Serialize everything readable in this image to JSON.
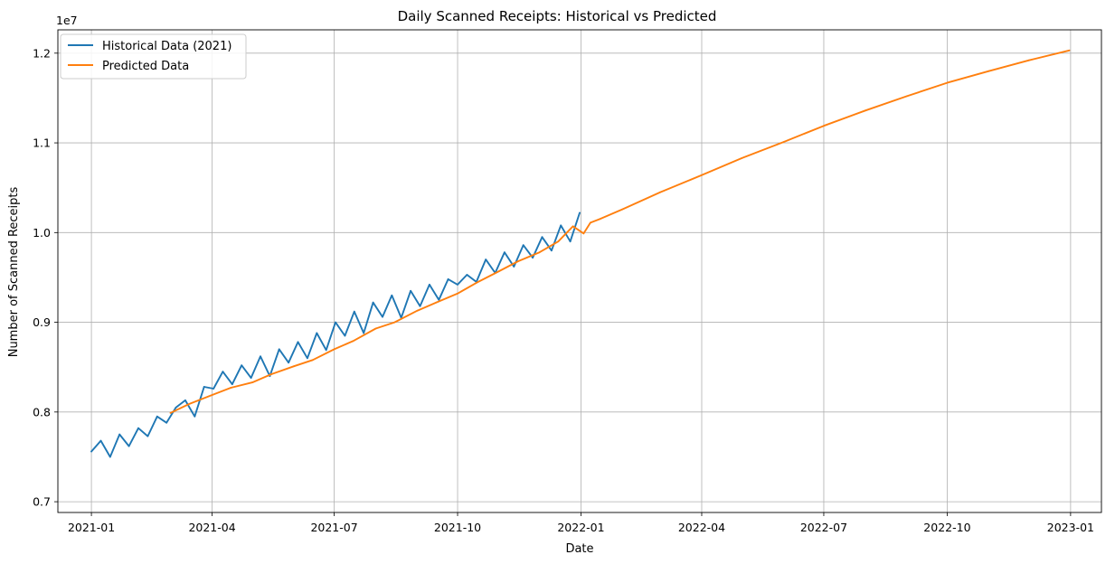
{
  "chart_data": {
    "type": "line",
    "title": "Daily Scanned Receipts: Historical vs Predicted",
    "xlabel": "Date",
    "ylabel": "Number of Scanned Receipts",
    "y_offset_label": "1e7",
    "xlim": [
      "2020-12-07",
      "2023-01-24"
    ],
    "ylim": [
      6880000,
      12260000
    ],
    "x_ticks": [
      "2021-01",
      "2021-04",
      "2021-07",
      "2021-10",
      "2022-01",
      "2022-04",
      "2022-07",
      "2022-10",
      "2023-01"
    ],
    "y_ticks": [
      {
        "value": 7000000,
        "label": "0.7"
      },
      {
        "value": 8000000,
        "label": "0.8"
      },
      {
        "value": 9000000,
        "label": "0.9"
      },
      {
        "value": 10000000,
        "label": "1.0"
      },
      {
        "value": 11000000,
        "label": "1.1"
      },
      {
        "value": 12000000,
        "label": "1.2"
      }
    ],
    "grid": true,
    "legend_position": "top-left",
    "series": [
      {
        "name": "Historical Data (2021)",
        "color": "#1f77b4",
        "x": [
          "2021-01-01",
          "2021-01-08",
          "2021-01-15",
          "2021-01-22",
          "2021-01-29",
          "2021-02-05",
          "2021-02-12",
          "2021-02-19",
          "2021-02-26",
          "2021-03-05",
          "2021-03-12",
          "2021-03-19",
          "2021-03-26",
          "2021-04-02",
          "2021-04-09",
          "2021-04-16",
          "2021-04-23",
          "2021-04-30",
          "2021-05-07",
          "2021-05-14",
          "2021-05-21",
          "2021-05-28",
          "2021-06-04",
          "2021-06-11",
          "2021-06-18",
          "2021-06-25",
          "2021-07-02",
          "2021-07-09",
          "2021-07-16",
          "2021-07-23",
          "2021-07-30",
          "2021-08-06",
          "2021-08-13",
          "2021-08-20",
          "2021-08-27",
          "2021-09-03",
          "2021-09-10",
          "2021-09-17",
          "2021-09-24",
          "2021-10-01",
          "2021-10-08",
          "2021-10-15",
          "2021-10-22",
          "2021-10-29",
          "2021-11-05",
          "2021-11-12",
          "2021-11-19",
          "2021-11-26",
          "2021-12-03",
          "2021-12-10",
          "2021-12-17",
          "2021-12-24",
          "2021-12-31"
        ],
        "values": [
          7560000,
          7680000,
          7500000,
          7750000,
          7620000,
          7820000,
          7730000,
          7950000,
          7880000,
          8050000,
          8130000,
          7950000,
          8280000,
          8260000,
          8450000,
          8310000,
          8520000,
          8380000,
          8620000,
          8400000,
          8700000,
          8550000,
          8780000,
          8600000,
          8880000,
          8690000,
          9000000,
          8850000,
          9120000,
          8880000,
          9220000,
          9060000,
          9300000,
          9050000,
          9350000,
          9180000,
          9420000,
          9250000,
          9480000,
          9420000,
          9530000,
          9450000,
          9700000,
          9550000,
          9780000,
          9620000,
          9860000,
          9720000,
          9950000,
          9800000,
          10080000,
          9900000,
          10220000
        ]
      },
      {
        "name": "Predicted Data",
        "color": "#ff7f0e",
        "x": [
          "2021-03-01",
          "2021-03-15",
          "2021-04-01",
          "2021-04-15",
          "2021-05-01",
          "2021-05-15",
          "2021-06-01",
          "2021-06-15",
          "2021-07-01",
          "2021-07-15",
          "2021-08-01",
          "2021-08-15",
          "2021-09-01",
          "2021-09-15",
          "2021-10-01",
          "2021-10-15",
          "2021-11-01",
          "2021-11-15",
          "2021-12-01",
          "2021-12-15",
          "2021-12-26",
          "2021-12-30",
          "2022-01-03",
          "2022-01-08",
          "2022-01-15",
          "2022-02-01",
          "2022-03-01",
          "2022-04-01",
          "2022-05-01",
          "2022-06-01",
          "2022-07-01",
          "2022-08-01",
          "2022-09-01",
          "2022-10-01",
          "2022-11-01",
          "2022-12-01",
          "2022-12-31"
        ],
        "values": [
          7990000,
          8090000,
          8190000,
          8270000,
          8330000,
          8420000,
          8510000,
          8580000,
          8700000,
          8790000,
          8930000,
          9000000,
          9130000,
          9220000,
          9320000,
          9440000,
          9570000,
          9680000,
          9780000,
          9900000,
          10070000,
          10030000,
          9990000,
          10110000,
          10150000,
          10260000,
          10450000,
          10640000,
          10830000,
          11010000,
          11190000,
          11360000,
          11520000,
          11670000,
          11800000,
          11920000,
          12030000
        ]
      }
    ]
  }
}
